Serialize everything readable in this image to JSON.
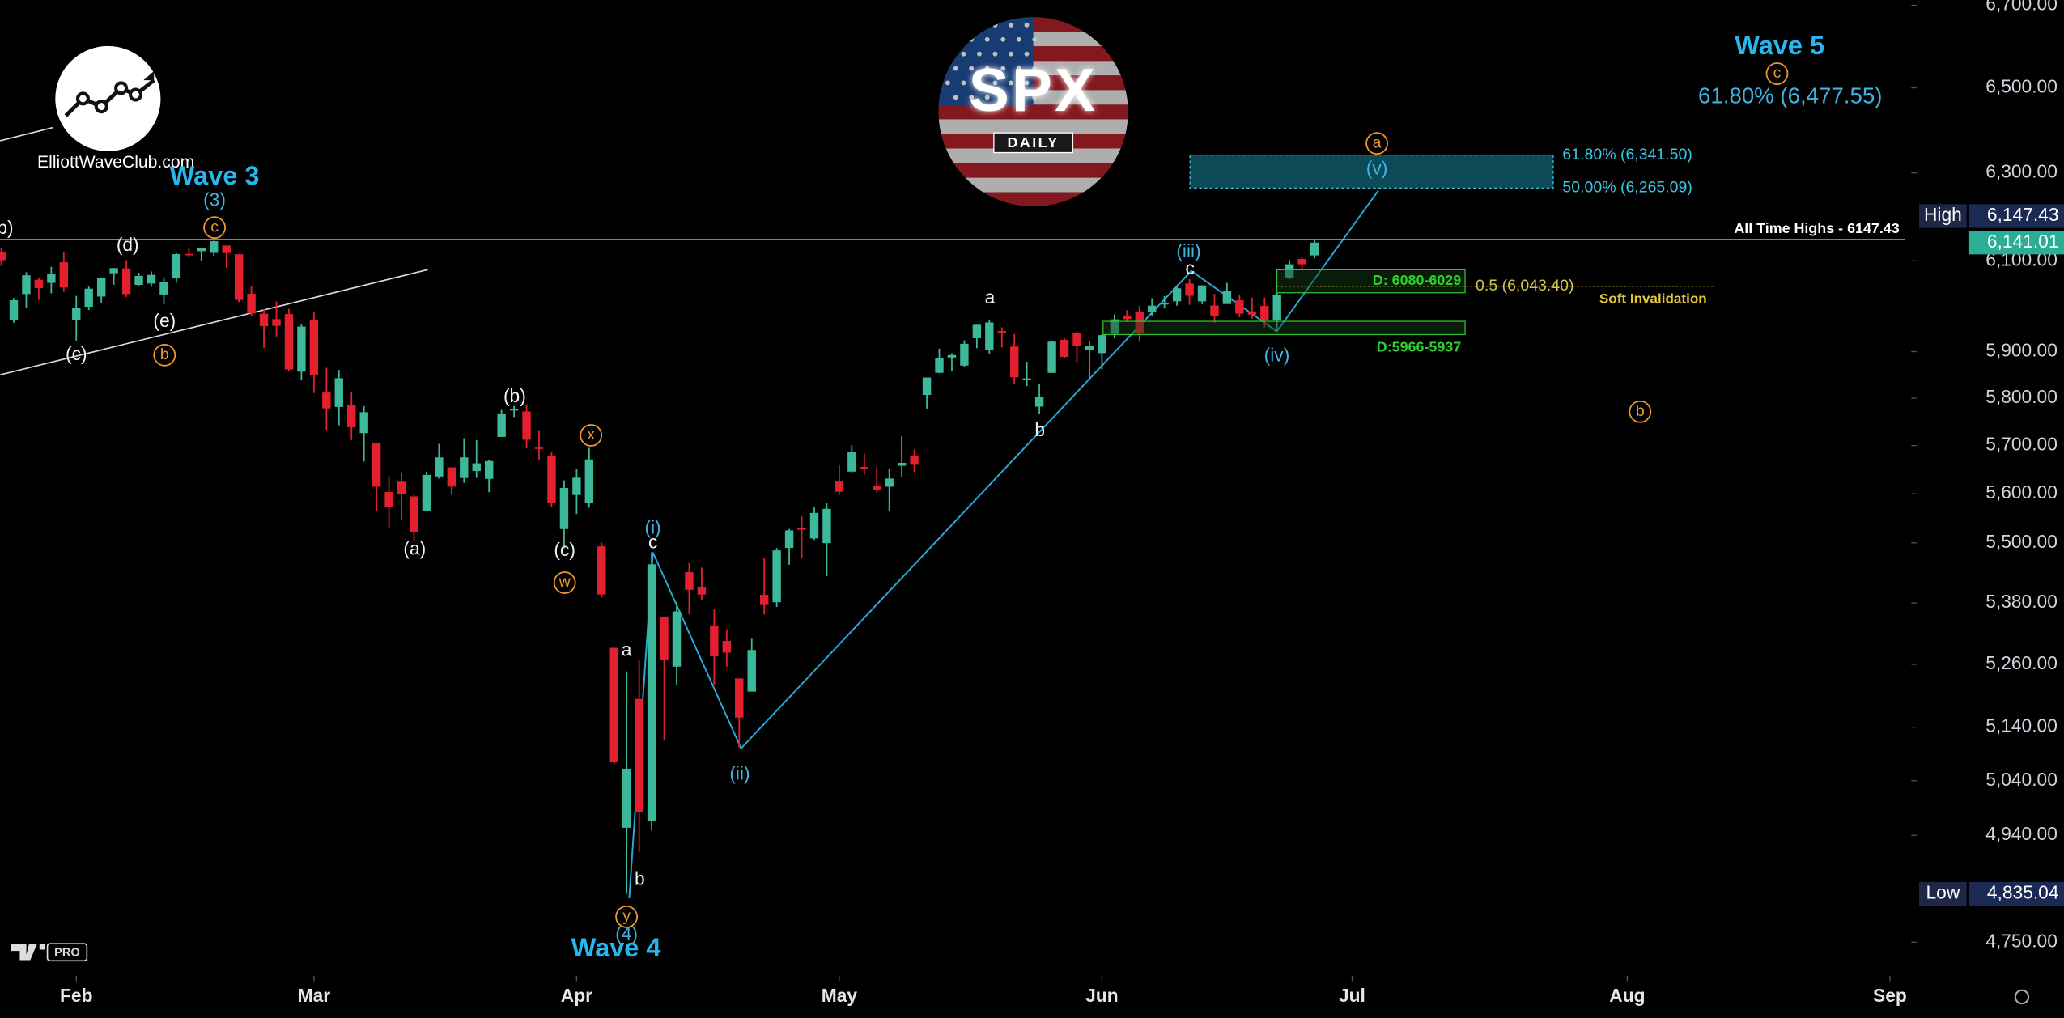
{
  "chart_data": {
    "type": "candlestick",
    "log": true,
    "x": [
      -6,
      -5,
      -4,
      -3,
      -2,
      -1,
      0,
      1,
      2,
      3,
      4,
      5,
      6,
      7,
      8,
      9,
      10,
      11,
      12,
      13,
      14,
      15,
      16,
      17,
      18,
      19,
      20,
      21,
      22,
      23,
      24,
      25,
      26,
      27,
      28,
      29,
      30,
      31,
      32,
      33,
      34,
      35,
      36,
      37,
      38,
      39,
      40,
      41,
      42,
      43,
      44,
      45,
      46,
      47,
      48,
      49,
      50,
      51,
      52,
      53,
      54,
      55,
      56,
      57,
      58,
      59,
      60,
      61,
      62,
      63,
      64,
      65,
      66,
      67,
      68,
      69,
      70,
      71,
      72,
      73,
      74,
      75,
      76,
      77,
      78,
      79,
      80,
      81,
      82,
      83,
      84,
      85,
      86,
      87,
      88,
      89,
      90,
      91,
      92,
      93,
      94,
      95,
      96,
      97,
      98,
      99
    ],
    "open": [
      6118.7,
      5969.0,
      6026.0,
      6057.7,
      6050.8,
      6096.8,
      5969.6,
      5998.1,
      6020.5,
      6072.2,
      6083.1,
      6046.4,
      6049.3,
      6025.1,
      6060.6,
      6115.5,
      6121.6,
      6117.8,
      6134.5,
      6114.8,
      6026.7,
      5982.7,
      5970.9,
      5981.9,
      5856.7,
      5968.3,
      5811.9,
      5781.4,
      5785.9,
      5726.0,
      5705.4,
      5603.7,
      5624.8,
      5594.5,
      5563.9,
      5635.6,
      5654.5,
      5632.4,
      5646.9,
      5630.7,
      5718.1,
      5775.7,
      5771.7,
      5695.6,
      5679.0,
      5527.9,
      5597.5,
      5580.8,
      5492.9,
      5292.1,
      4953.8,
      5193.6,
      4965.3,
      5353.2,
      5255.6,
      5441.0,
      5411.9,
      5335.8,
      5305.5,
      5232.9,
      5207.7,
      5395.9,
      5381.4,
      5489.7,
      5529.2,
      5508.9,
      5499.4,
      5625.1,
      5645.8,
      5655.3,
      5617.0,
      5614.5,
      5657.8,
      5679.0,
      5807.0,
      5854.3,
      5887.2,
      5869.8,
      5929.1,
      5902.9,
      5944.7,
      5910.9,
      5841.3,
      5781.9,
      5854.1,
      5925.5,
      5939.9,
      5903.7,
      5896.7,
      5938.6,
      5978.9,
      5985.7,
      5987.1,
      6004.6,
      6009.9,
      6049.4,
      6009.9,
      6000.6,
      6004.0,
      6012.2,
      5987.9,
      5999.7,
      5969.7,
      6061.2,
      6104.2,
      6112.1
    ],
    "high": [
      6128.2,
      6017.2,
      6074.5,
      6062.8,
      6086.6,
      6120.9,
      6022.1,
      6042.5,
      6062.9,
      6084.0,
      6101.3,
      6073.4,
      6076.3,
      6063.3,
      6116.9,
      6127.5,
      6129.6,
      6147.4,
      6134.5,
      6114.8,
      6043.7,
      5992.7,
      6009.8,
      5993.7,
      5959.4,
      5986.1,
      5865.1,
      5860.6,
      5812.1,
      5783.0,
      5705.4,
      5636.3,
      5642.2,
      5597.8,
      5645.3,
      5703.5,
      5654.5,
      5715.3,
      5711.2,
      5670.8,
      5775.1,
      5783.1,
      5786.9,
      5732.3,
      5685.9,
      5627.6,
      5650.6,
      5695.3,
      5500.6,
      5292.1,
      5246.6,
      5267.5,
      5481.3,
      5353.2,
      5381.5,
      5459.5,
      5450.4,
      5367.2,
      5328.3,
      5232.9,
      5309.6,
      5469.7,
      5489.4,
      5528.1,
      5553.7,
      5571.9,
      5581.8,
      5659.0,
      5700.7,
      5683.9,
      5654.9,
      5651.1,
      5720.1,
      5691.7,
      5844.2,
      5906.6,
      5896.7,
      5924.5,
      5958.6,
      5968.6,
      5953.1,
      5938.4,
      5878.1,
      5829.5,
      5924.1,
      5929.0,
      5943.1,
      5922.1,
      5937.4,
      5981.4,
      5990.5,
      5999.7,
      6016.9,
      6021.3,
      6043.0,
      6059.4,
      6045.4,
      6026.2,
      6050.8,
      6023.3,
      6018.2,
      6018.2,
      6028.3,
      6101.7,
      6108.5,
      6146.5
    ],
    "low": [
      6088.7,
      5962.9,
      5994.6,
      6012.9,
      6027.5,
      6030.9,
      5923.9,
      5990.9,
      6007.1,
      6046.8,
      6019.9,
      6044.8,
      6042.3,
      6003.0,
      6051.0,
      6107.6,
      6099.5,
      6111.2,
      6084.6,
      6008.6,
      5977.4,
      5908.5,
      5932.7,
      5858.8,
      5837.7,
      5810.9,
      5732.6,
      5742.4,
      5711.6,
      5666.3,
      5564.0,
      5528.4,
      5546.1,
      5504.7,
      5563.9,
      5631.1,
      5597.8,
      5622.2,
      5632.6,
      5603.1,
      5718.1,
      5759.9,
      5694.2,
      5670.9,
      5572.4,
      5488.7,
      5558.5,
      5571.5,
      5390.8,
      5069.9,
      4835.0,
      4910.4,
      4948.4,
      5115.3,
      5220.8,
      5358.0,
      5386.4,
      5220.8,
      5255.6,
      5101.6,
      5207.7,
      5356.9,
      5371.9,
      5455.9,
      5468.6,
      5505.7,
      5433.2,
      5597.4,
      5644.1,
      5639.0,
      5602.5,
      5564.2,
      5635.5,
      5644.6,
      5777.9,
      5853.6,
      5859.0,
      5867.4,
      5907.4,
      5895.7,
      5909.3,
      5830.9,
      5825.8,
      5767.4,
      5854.1,
      5886.8,
      5874.8,
      5843.7,
      5861.4,
      5929.0,
      5966.1,
      5921.2,
      5978.6,
      5994.2,
      6000.3,
      6002.3,
      6003.9,
      5963.2,
      6004.0,
      5974.8,
      5971.9,
      5952.6,
      5943.2,
      6059.2,
      6080.5,
      6105.8
    ],
    "close": [
      6101.2,
      6012.3,
      6067.7,
      6039.3,
      6071.2,
      6040.5,
      5994.6,
      6037.9,
      6061.5,
      6083.6,
      6026.0,
      6066.4,
      6068.5,
      6052.0,
      6115.1,
      6114.6,
      6129.6,
      6144.2,
      6117.5,
      6013.1,
      5983.3,
      5955.3,
      5956.1,
      5861.6,
      5954.5,
      5849.7,
      5778.2,
      5842.6,
      5738.5,
      5770.2,
      5614.6,
      5572.1,
      5599.3,
      5521.5,
      5638.9,
      5675.1,
      5614.7,
      5675.3,
      5662.9,
      5667.6,
      5767.6,
      5776.7,
      5712.2,
      5693.3,
      5580.9,
      5611.9,
      5633.1,
      5671.0,
      5396.5,
      5074.1,
      5062.3,
      4982.8,
      5456.9,
      5268.1,
      5363.4,
      5406.0,
      5396.6,
      5275.7,
      5282.7,
      5158.2,
      5287.8,
      5375.9,
      5484.8,
      5525.2,
      5528.8,
      5560.8,
      5569.1,
      5604.1,
      5686.7,
      5650.4,
      5606.9,
      5631.3,
      5663.9,
      5659.9,
      5844.2,
      5886.6,
      5892.6,
      5916.9,
      5958.4,
      5963.6,
      5940.5,
      5844.6,
      5842.0,
      5802.8,
      5921.5,
      5888.6,
      5912.2,
      5911.7,
      5935.9,
      5970.4,
      5970.8,
      5939.3,
      6000.4,
      6005.9,
      6038.8,
      6022.2,
      6045.3,
      5977.0,
      6033.1,
      5982.7,
      5980.9,
      5967.8,
      6025.2,
      6092.2,
      6092.2,
      6141.0
    ],
    "up_color": "#3cb89a",
    "down_color": "#e5202e",
    "xlim": [
      -6.1,
      146.5
    ],
    "xticks": [
      {
        "value": 0,
        "label": "Feb"
      },
      {
        "value": 19,
        "label": "Mar"
      },
      {
        "value": 40,
        "label": "Apr"
      },
      {
        "value": 61,
        "label": "May"
      },
      {
        "value": 82,
        "label": "Jun"
      },
      {
        "value": 102,
        "label": "Jul"
      },
      {
        "value": 124,
        "label": "Aug"
      },
      {
        "value": 145,
        "label": "Sep"
      }
    ],
    "ylim": [
      4696,
      6713
    ],
    "yticks": [
      {
        "value": 6700,
        "label": "6,700.00"
      },
      {
        "value": 6500,
        "label": "6,500.00"
      },
      {
        "value": 6300,
        "label": "6,300.00"
      },
      {
        "value": 6100,
        "label": "6,100.00"
      },
      {
        "value": 5900,
        "label": "5,900.00"
      },
      {
        "value": 5800,
        "label": "5,800.00"
      },
      {
        "value": 5700,
        "label": "5,700.00"
      },
      {
        "value": 5600,
        "label": "5,600.00"
      },
      {
        "value": 5500,
        "label": "5,500.00"
      },
      {
        "value": 5380,
        "label": "5,380.00"
      },
      {
        "value": 5260,
        "label": "5,260.00"
      },
      {
        "value": 5140,
        "label": "5,140.00"
      },
      {
        "value": 5040,
        "label": "5,040.00"
      },
      {
        "value": 4940,
        "label": "4,940.00"
      },
      {
        "value": 4750,
        "label": "4,750.00"
      }
    ],
    "price_badges": [
      {
        "name": "High",
        "value": 6147.43,
        "value_label": "6,147.43"
      },
      {
        "value": 6141.01,
        "value_label": "6,141.01"
      },
      {
        "name": "Low",
        "value": 4835.04,
        "value_label": "4,835.04"
      }
    ],
    "ath": {
      "label": "All Time Highs - 6147.43",
      "value": 6147.43
    },
    "fib_zone": [
      {
        "label": "61.80% (6,341.50)",
        "value": 6341.5
      },
      {
        "label": "50.00% (6,265.09)",
        "value": 6265.09
      }
    ],
    "fib_target": {
      "label": "61.80% (6,477.55)",
      "value": 6477.55
    },
    "half_level": {
      "label": "0.5 (6,043.40)",
      "value": 6043.4,
      "note": "Soft Invalidation"
    },
    "demand_zones": [
      {
        "label": "D: 6080-6029",
        "high": 6080,
        "low": 6029
      },
      {
        "label": "D:5966-5937",
        "high": 5966,
        "low": 5937
      }
    ],
    "wave_labels": [
      "Wave 3",
      "(3)",
      "c",
      "(d)",
      "b)",
      "(e)",
      "(c)",
      "b",
      "(b)",
      "x",
      "(a)",
      "(c)",
      "w",
      "(i)",
      "c",
      "a",
      "b",
      "y",
      "(4)",
      "Wave 4",
      "(ii)",
      "a",
      "b",
      "(iii)",
      "c",
      "(iv)",
      "(v)",
      "a",
      "b",
      "Wave 5",
      "c"
    ]
  },
  "logo": {
    "title": "SPX",
    "subtitle": "DAILY"
  },
  "brand": "ElliottWaveClub.com",
  "tv_badge": "PRO"
}
